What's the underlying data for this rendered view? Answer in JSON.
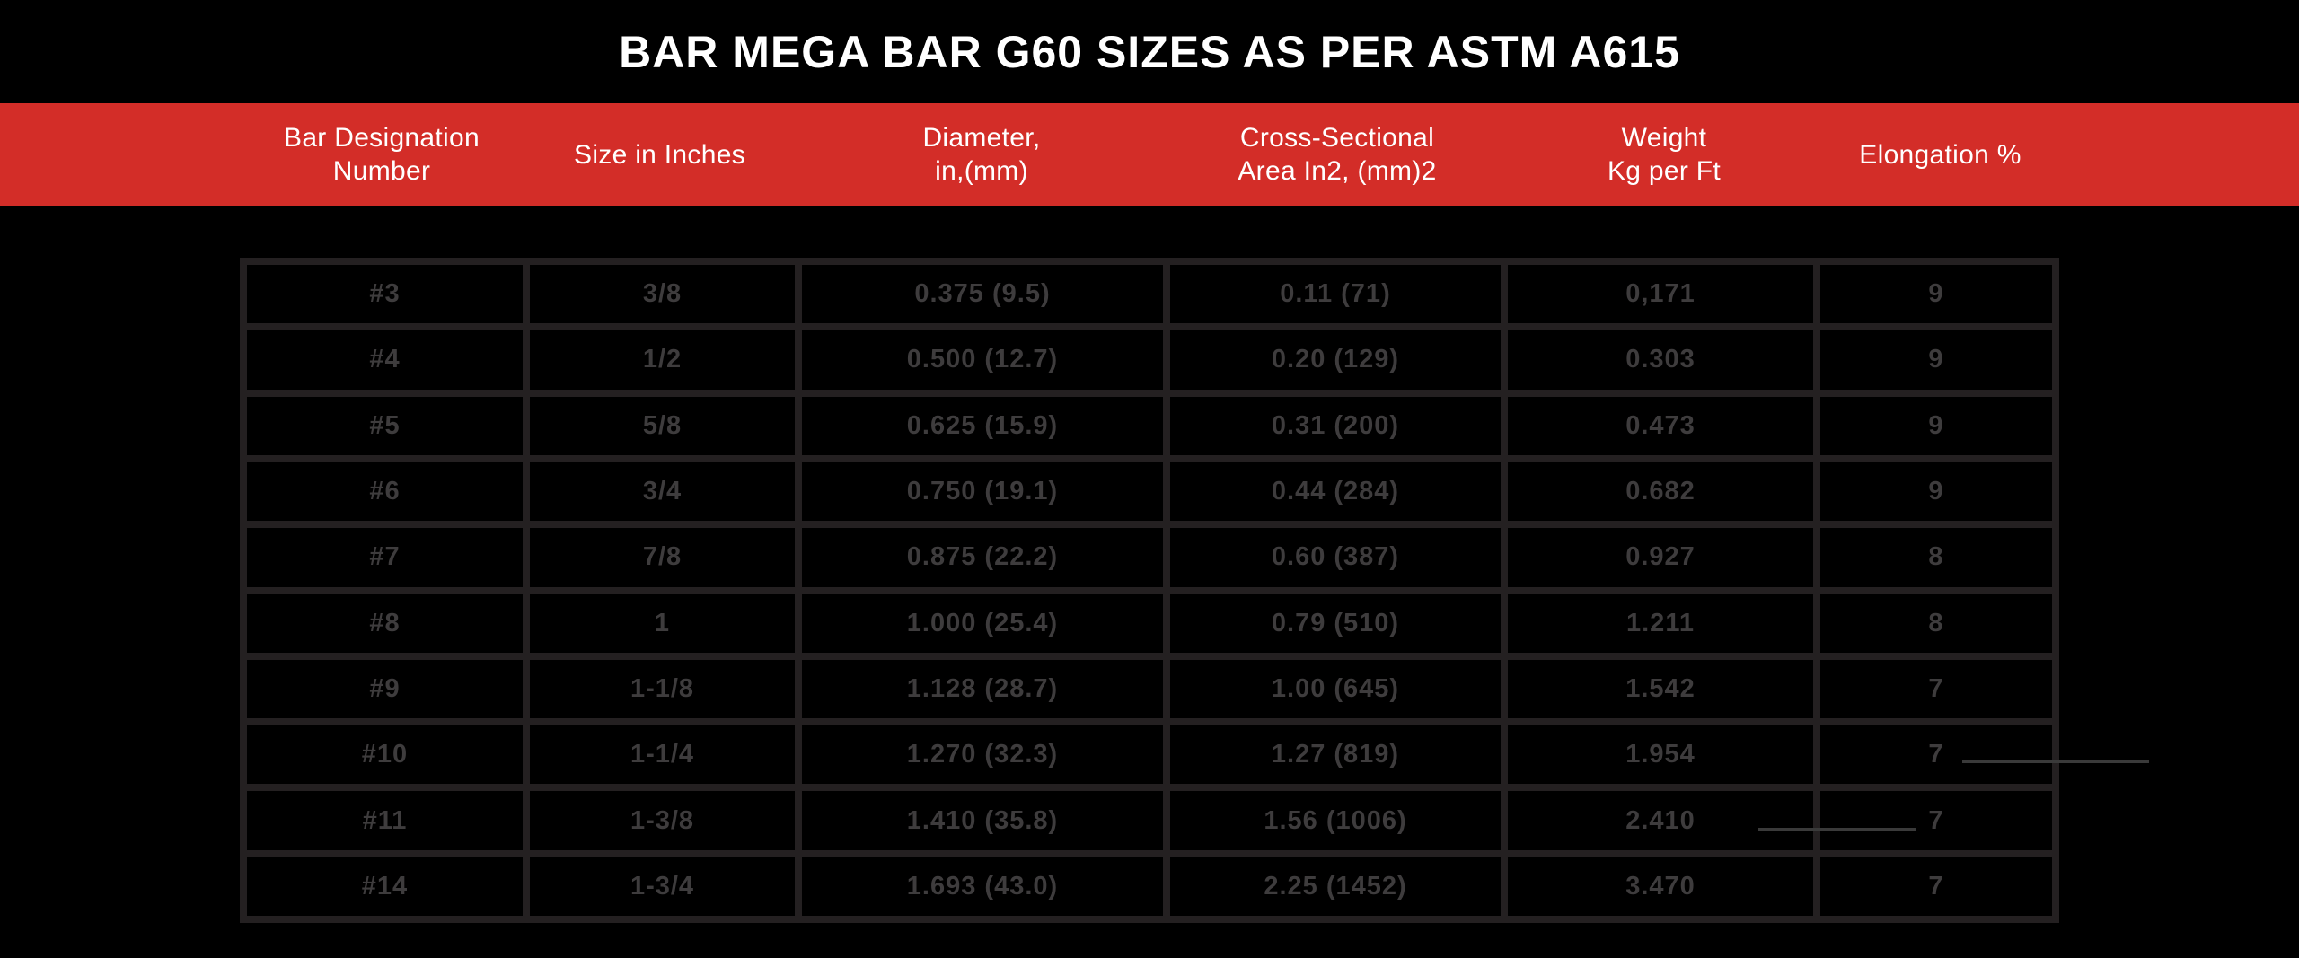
{
  "title": "BAR MEGA BAR G60 SIZES AS PER ASTM A615",
  "colors": {
    "background": "#000000",
    "header_band": "#d32d28",
    "header_text": "#ffffff",
    "title_text": "#ffffff",
    "table_border": "#242021",
    "cell_text": "#3e3c3d"
  },
  "table": {
    "headers": [
      "Bar Designation\nNumber",
      "Size in Inches",
      "Diameter,\nin,(mm)",
      "Cross-Sectional\nArea In2, (mm)2",
      "Weight\nKg per Ft",
      "Elongation %"
    ],
    "rows": [
      {
        "designation": "#3",
        "size_in": "3/8",
        "diameter": "0.375 (9.5)",
        "area": "0.11 (71)",
        "weight_kg_ft": "0,171",
        "elongation_pct": "9"
      },
      {
        "designation": "#4",
        "size_in": "1/2",
        "diameter": "0.500 (12.7)",
        "area": "0.20 (129)",
        "weight_kg_ft": "0.303",
        "elongation_pct": "9"
      },
      {
        "designation": "#5",
        "size_in": "5/8",
        "diameter": "0.625 (15.9)",
        "area": "0.31 (200)",
        "weight_kg_ft": "0.473",
        "elongation_pct": "9"
      },
      {
        "designation": "#6",
        "size_in": "3/4",
        "diameter": "0.750 (19.1)",
        "area": "0.44 (284)",
        "weight_kg_ft": "0.682",
        "elongation_pct": "9"
      },
      {
        "designation": "#7",
        "size_in": "7/8",
        "diameter": "0.875 (22.2)",
        "area": "0.60 (387)",
        "weight_kg_ft": "0.927",
        "elongation_pct": "8"
      },
      {
        "designation": "#8",
        "size_in": "1",
        "diameter": "1.000 (25.4)",
        "area": "0.79 (510)",
        "weight_kg_ft": "1.211",
        "elongation_pct": "8"
      },
      {
        "designation": "#9",
        "size_in": "1-1/8",
        "diameter": "1.128 (28.7)",
        "area": "1.00 (645)",
        "weight_kg_ft": "1.542",
        "elongation_pct": "7"
      },
      {
        "designation": "#10",
        "size_in": "1-1/4",
        "diameter": "1.270 (32.3)",
        "area": "1.27 (819)",
        "weight_kg_ft": "1.954",
        "elongation_pct": "7"
      },
      {
        "designation": "#11",
        "size_in": "1-3/8",
        "diameter": "1.410 (35.8)",
        "area": "1.56 (1006)",
        "weight_kg_ft": "2.410",
        "elongation_pct": "7"
      },
      {
        "designation": "#14",
        "size_in": "1-3/4",
        "diameter": "1.693 (43.0)",
        "area": "2.25 (1452)",
        "weight_kg_ft": "3.470",
        "elongation_pct": "7"
      }
    ]
  },
  "chart_data": {
    "type": "table",
    "title": "BAR MEGA BAR G60 SIZES AS PER ASTM A615",
    "columns": [
      "Bar Designation Number",
      "Size in Inches",
      "Diameter, in,(mm)",
      "Cross-Sectional Area In2, (mm)2",
      "Weight Kg per Ft",
      "Elongation %"
    ],
    "rows": [
      [
        "#3",
        "3/8",
        "0.375 (9.5)",
        "0.11 (71)",
        "0,171",
        "9"
      ],
      [
        "#4",
        "1/2",
        "0.500 (12.7)",
        "0.20 (129)",
        "0.303",
        "9"
      ],
      [
        "#5",
        "5/8",
        "0.625 (15.9)",
        "0.31 (200)",
        "0.473",
        "9"
      ],
      [
        "#6",
        "3/4",
        "0.750 (19.1)",
        "0.44 (284)",
        "0.682",
        "9"
      ],
      [
        "#7",
        "7/8",
        "0.875 (22.2)",
        "0.60 (387)",
        "0.927",
        "8"
      ],
      [
        "#8",
        "1",
        "1.000 (25.4)",
        "0.79 (510)",
        "1.211",
        "8"
      ],
      [
        "#9",
        "1-1/8",
        "1.128 (28.7)",
        "1.00 (645)",
        "1.542",
        "7"
      ],
      [
        "#10",
        "1-1/4",
        "1.270 (32.3)",
        "1.27 (819)",
        "1.954",
        "7"
      ],
      [
        "#11",
        "1-3/8",
        "1.410 (35.8)",
        "1.56 (1006)",
        "2.410",
        "7"
      ],
      [
        "#14",
        "1-3/4",
        "1.693 (43.0)",
        "2.25 (1452)",
        "3.470",
        "7"
      ]
    ]
  }
}
